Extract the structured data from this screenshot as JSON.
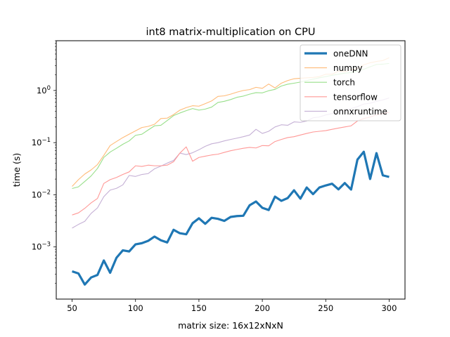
{
  "chart_data": {
    "type": "line",
    "title": "int8 matrix-multiplication on CPU",
    "xlabel": "matrix size: 16x12xNxN",
    "ylabel": "time (s)",
    "yscale": "log",
    "xlim": [
      37.5,
      312.5
    ],
    "ylim": [
      0.0001,
      9
    ],
    "xticks": [
      50,
      100,
      150,
      200,
      250,
      300
    ],
    "yticks": [
      {
        "value": 0.001,
        "base": "10",
        "exp": "−3"
      },
      {
        "value": 0.01,
        "base": "10",
        "exp": "−2"
      },
      {
        "value": 0.1,
        "base": "10",
        "exp": "−1"
      },
      {
        "value": 1,
        "base": "10",
        "exp": "0"
      }
    ],
    "grid": false,
    "legend_position": "top-right",
    "x": [
      50,
      55,
      60,
      65,
      70,
      75,
      80,
      85,
      90,
      95,
      100,
      105,
      110,
      115,
      120,
      125,
      130,
      135,
      140,
      145,
      150,
      155,
      160,
      165,
      170,
      175,
      180,
      185,
      190,
      195,
      200,
      205,
      210,
      215,
      220,
      225,
      230,
      235,
      240,
      245,
      250,
      255,
      260,
      265,
      270,
      275,
      280,
      285,
      290,
      295,
      300
    ],
    "series": [
      {
        "name": "oneDNN",
        "color": "#1f77b4",
        "width": 3.2,
        "values": [
          0.00034,
          0.00031,
          0.00019,
          0.00026,
          0.00029,
          0.00055,
          0.00032,
          0.00062,
          0.00086,
          0.00082,
          0.00112,
          0.00118,
          0.00131,
          0.00158,
          0.00134,
          0.00122,
          0.00213,
          0.00183,
          0.00175,
          0.00285,
          0.00354,
          0.00278,
          0.00362,
          0.00346,
          0.00316,
          0.00376,
          0.00391,
          0.00396,
          0.0063,
          0.00743,
          0.00562,
          0.0051,
          0.00922,
          0.00766,
          0.00865,
          0.0122,
          0.00843,
          0.0138,
          0.0103,
          0.0138,
          0.0151,
          0.0163,
          0.0127,
          0.0168,
          0.0126,
          0.0473,
          0.0668,
          0.0201,
          0.0629,
          0.0236,
          0.022
        ]
      },
      {
        "name": "numpy",
        "color": "#ffbb78",
        "width": 1.1,
        "values": [
          0.0145,
          0.0195,
          0.025,
          0.03,
          0.038,
          0.057,
          0.088,
          0.105,
          0.125,
          0.145,
          0.168,
          0.195,
          0.205,
          0.225,
          0.29,
          0.295,
          0.345,
          0.42,
          0.47,
          0.51,
          0.5,
          0.56,
          0.63,
          0.77,
          0.79,
          0.85,
          0.93,
          1.0,
          1.04,
          1.15,
          1.1,
          1.33,
          1.12,
          1.38,
          1.55,
          1.68,
          1.72,
          1.75,
          1.78,
          1.85,
          2.05,
          2.05,
          2.35,
          2.3,
          2.5,
          2.65,
          3.1,
          3.4,
          3.6,
          3.75,
          4.25
        ]
      },
      {
        "name": "torch",
        "color": "#98df8a",
        "width": 1.1,
        "values": [
          0.0132,
          0.0142,
          0.018,
          0.023,
          0.032,
          0.052,
          0.066,
          0.078,
          0.093,
          0.108,
          0.138,
          0.145,
          0.175,
          0.21,
          0.215,
          0.265,
          0.33,
          0.37,
          0.41,
          0.45,
          0.42,
          0.44,
          0.48,
          0.59,
          0.62,
          0.67,
          0.74,
          0.78,
          0.85,
          0.91,
          0.9,
          0.99,
          1.05,
          1.22,
          1.32,
          1.38,
          1.45,
          1.55,
          1.65,
          1.75,
          1.85,
          1.95,
          2.05,
          2.15,
          2.2,
          2.35,
          2.55,
          2.85,
          3.15,
          3.2,
          3.3
        ]
      },
      {
        "name": "tensorflow",
        "color": "#ff9896",
        "width": 1.1,
        "values": [
          0.0041,
          0.0045,
          0.0055,
          0.007,
          0.0085,
          0.0165,
          0.0195,
          0.0215,
          0.0245,
          0.0275,
          0.036,
          0.035,
          0.037,
          0.036,
          0.036,
          0.037,
          0.043,
          0.063,
          0.083,
          0.044,
          0.052,
          0.055,
          0.058,
          0.06,
          0.065,
          0.07,
          0.074,
          0.078,
          0.081,
          0.079,
          0.088,
          0.087,
          0.105,
          0.115,
          0.125,
          0.13,
          0.14,
          0.15,
          0.16,
          0.165,
          0.17,
          0.18,
          0.19,
          0.2,
          0.21,
          0.26,
          0.29,
          0.31,
          0.34,
          0.36,
          0.38
        ]
      },
      {
        "name": "onnxruntime",
        "color": "#c5b0d5",
        "width": 1.1,
        "values": [
          0.0023,
          0.0027,
          0.0031,
          0.0044,
          0.0056,
          0.0092,
          0.0123,
          0.0133,
          0.0155,
          0.0235,
          0.0225,
          0.0245,
          0.0255,
          0.0315,
          0.0355,
          0.0405,
          0.0455,
          0.063,
          0.059,
          0.064,
          0.073,
          0.085,
          0.095,
          0.1,
          0.108,
          0.115,
          0.122,
          0.13,
          0.14,
          0.18,
          0.15,
          0.165,
          0.2,
          0.22,
          0.215,
          0.25,
          0.245,
          0.26,
          0.3,
          0.31,
          0.34,
          0.36,
          0.39,
          0.41,
          0.45,
          0.49,
          0.55,
          0.57,
          0.62,
          0.66,
          0.72
        ]
      }
    ]
  }
}
